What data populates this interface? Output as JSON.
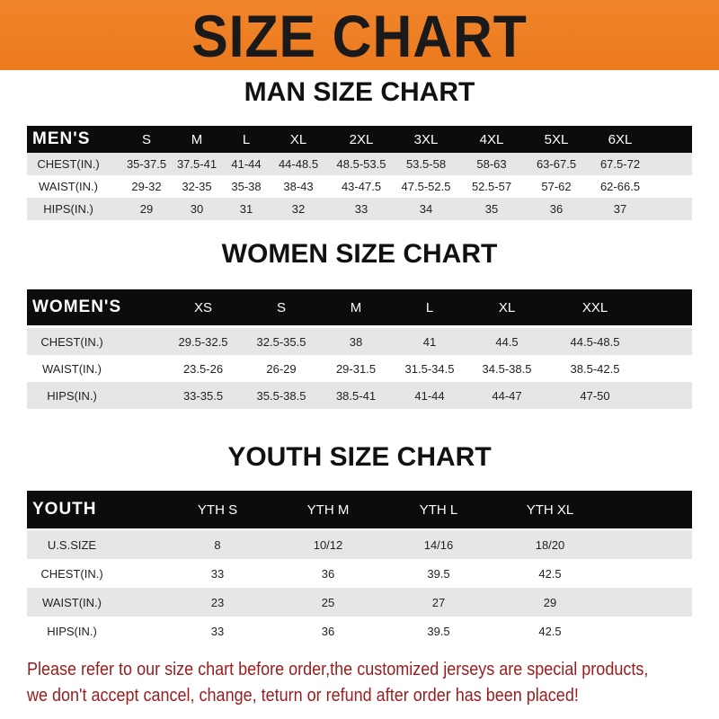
{
  "banner": {
    "title": "SIZE CHART",
    "color": "#ef8024"
  },
  "men": {
    "title": "MAN SIZE CHART",
    "header": "MEN'S",
    "sizes": [
      "S",
      "M",
      "L",
      "XL",
      "2XL",
      "3XL",
      "4XL",
      "5XL",
      "6XL"
    ],
    "rows": [
      {
        "label": "CHEST(IN.)",
        "values": [
          "35-37.5",
          "37.5-41",
          "41-44",
          "44-48.5",
          "48.5-53.5",
          "53.5-58",
          "58-63",
          "63-67.5",
          "67.5-72"
        ]
      },
      {
        "label": "WAIST(IN.)",
        "values": [
          "29-32",
          "32-35",
          "35-38",
          "38-43",
          "43-47.5",
          "47.5-52.5",
          "52.5-57",
          "57-62",
          "62-66.5"
        ]
      },
      {
        "label": "HIPS(IN.)",
        "values": [
          "29",
          "30",
          "31",
          "32",
          "33",
          "34",
          "35",
          "36",
          "37"
        ]
      }
    ]
  },
  "women": {
    "title": "WOMEN SIZE CHART",
    "header": "WOMEN'S",
    "sizes": [
      "XS",
      "S",
      "M",
      "L",
      "XL",
      "XXL"
    ],
    "rows": [
      {
        "label": "CHEST(IN.)",
        "values": [
          "29.5-32.5",
          "32.5-35.5",
          "38",
          "41",
          "44.5",
          "44.5-48.5"
        ]
      },
      {
        "label": "WAIST(IN.)",
        "values": [
          "23.5-26",
          "26-29",
          "29-31.5",
          "31.5-34.5",
          "34.5-38.5",
          "38.5-42.5"
        ]
      },
      {
        "label": "HIPS(IN.)",
        "values": [
          "33-35.5",
          "35.5-38.5",
          "38.5-41",
          "41-44",
          "44-47",
          "47-50"
        ]
      }
    ]
  },
  "youth": {
    "title": "YOUTH SIZE CHART",
    "header": "YOUTH",
    "sizes": [
      "YTH S",
      "YTH M",
      "YTH L",
      "YTH XL"
    ],
    "rows": [
      {
        "label": "U.S.SIZE",
        "values": [
          "8",
          "10/12",
          "14/16",
          "18/20"
        ]
      },
      {
        "label": "CHEST(IN.)",
        "values": [
          "33",
          "36",
          "39.5",
          "42.5"
        ]
      },
      {
        "label": "WAIST(IN.)",
        "values": [
          "23",
          "25",
          "27",
          "29"
        ]
      },
      {
        "label": "HIPS(IN.)",
        "values": [
          "33",
          "36",
          "39.5",
          "42.5"
        ]
      }
    ]
  },
  "notice": {
    "line1": "Please refer to our size chart before order,the customized jerseys are special products,",
    "line2": "we don't accept cancel, change, teturn or refund after order has been placed!",
    "color": "#9a1c1c"
  }
}
